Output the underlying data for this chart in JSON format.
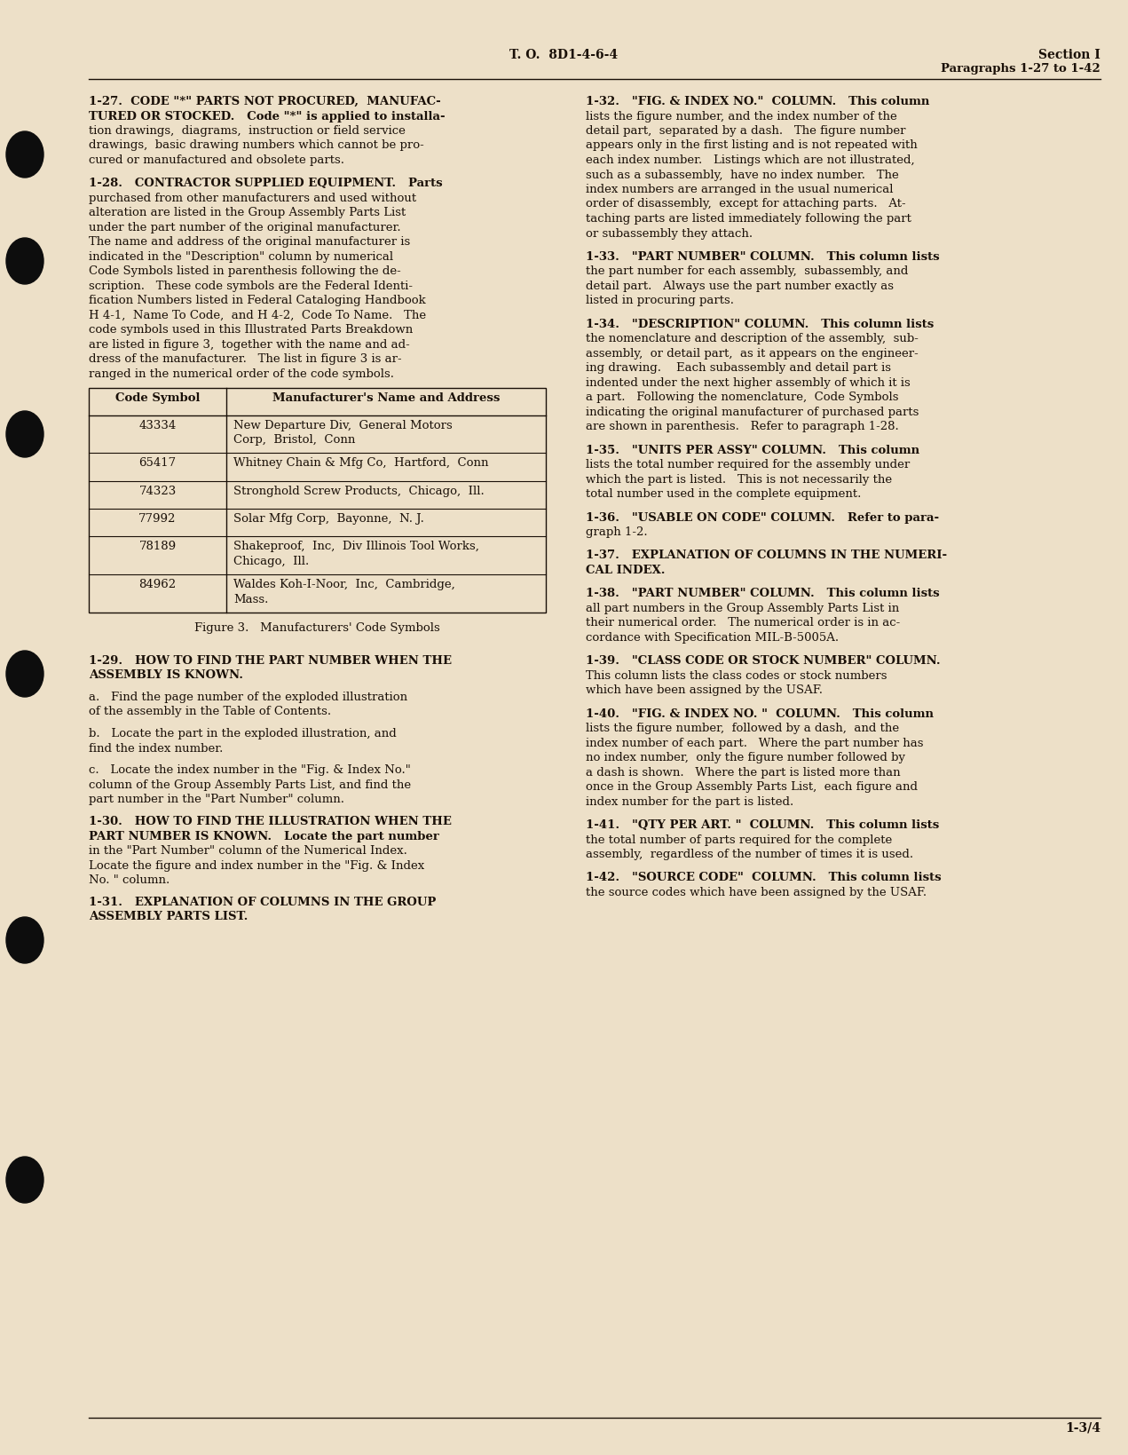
{
  "page_color": "#ede0c8",
  "text_color": "#1a1008",
  "header_center": "T. O.  8D1-4-6-4",
  "header_right_line1": "Section I",
  "header_right_line2": "Paragraphs 1-27 to 1-42",
  "footer_right": "1-3/4",
  "table_rows": [
    [
      "43334",
      "New Departure Div,  General Motors\nCorp,  Bristol,  Conn"
    ],
    [
      "65417",
      "Whitney Chain & Mfg Co,  Hartford,  Conn"
    ],
    [
      "74323",
      "Stronghold Screw Products,  Chicago,  Ill."
    ],
    [
      "77992",
      "Solar Mfg Corp,  Bayonne,  N. J."
    ],
    [
      "78189",
      "Shakeproof,  Inc,  Div Illinois Tool Works,\nChicago,  Ill."
    ],
    [
      "84962",
      "Waldes Koh-I-Noor,  Inc,  Cambridge,\nMass."
    ]
  ]
}
